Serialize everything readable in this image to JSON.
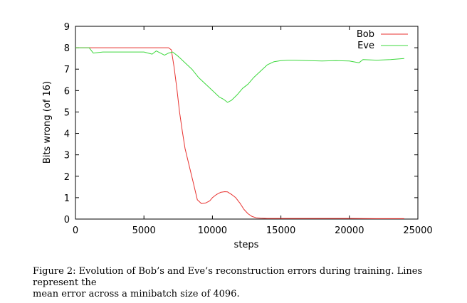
{
  "chart_data": {
    "type": "line",
    "xlabel": "steps",
    "ylabel": "Bits wrong (of 16)",
    "xlim": [
      0,
      25000
    ],
    "ylim": [
      0,
      9
    ],
    "x_ticks": [
      0,
      5000,
      10000,
      15000,
      20000,
      25000
    ],
    "y_ticks": [
      0,
      1,
      2,
      3,
      4,
      5,
      6,
      7,
      8,
      9
    ],
    "grid": false,
    "legend_position": "top-right",
    "series": [
      {
        "name": "Bob",
        "color": "#e8322f",
        "x": [
          0,
          1000,
          2000,
          3000,
          4000,
          5000,
          6000,
          6800,
          7000,
          7200,
          7400,
          7600,
          7800,
          8000,
          8300,
          8600,
          8900,
          9200,
          9500,
          9800,
          10000,
          10300,
          10600,
          10900,
          11100,
          11400,
          11700,
          12000,
          12300,
          12600,
          12900,
          13200,
          13500,
          14000,
          15000,
          17000,
          20000,
          22000,
          24000
        ],
        "y": [
          8.0,
          8.0,
          8.0,
          8.0,
          8.0,
          8.0,
          8.0,
          8.0,
          7.9,
          7.1,
          6.1,
          5.0,
          4.1,
          3.3,
          2.5,
          1.7,
          0.9,
          0.72,
          0.75,
          0.85,
          1.0,
          1.15,
          1.25,
          1.28,
          1.27,
          1.15,
          1.0,
          0.75,
          0.45,
          0.25,
          0.12,
          0.06,
          0.04,
          0.03,
          0.03,
          0.03,
          0.03,
          0.02,
          0.02
        ]
      },
      {
        "name": "Eve",
        "color": "#3cd83c",
        "x": [
          0,
          700,
          1000,
          1300,
          2000,
          3000,
          4000,
          5000,
          5600,
          5900,
          6200,
          6500,
          6800,
          7100,
          7500,
          8000,
          8500,
          9000,
          9500,
          10000,
          10500,
          10800,
          11100,
          11400,
          11800,
          12200,
          12600,
          13000,
          13500,
          14000,
          14500,
          15000,
          15500,
          16000,
          17000,
          18000,
          19000,
          20000,
          20700,
          21000,
          22000,
          23000,
          24000
        ],
        "y": [
          8.0,
          8.0,
          8.0,
          7.75,
          7.8,
          7.8,
          7.8,
          7.8,
          7.7,
          7.85,
          7.75,
          7.65,
          7.75,
          7.8,
          7.6,
          7.3,
          7.0,
          6.6,
          6.3,
          6.0,
          5.7,
          5.6,
          5.45,
          5.55,
          5.8,
          6.1,
          6.3,
          6.6,
          6.9,
          7.2,
          7.35,
          7.4,
          7.42,
          7.42,
          7.4,
          7.38,
          7.4,
          7.38,
          7.3,
          7.45,
          7.42,
          7.45,
          7.5
        ]
      }
    ]
  },
  "caption": {
    "line1": "Figure 2: Evolution of Bob’s and Eve’s reconstruction errors during training. Lines represent the",
    "line2": "mean error across a minibatch size of 4096."
  }
}
